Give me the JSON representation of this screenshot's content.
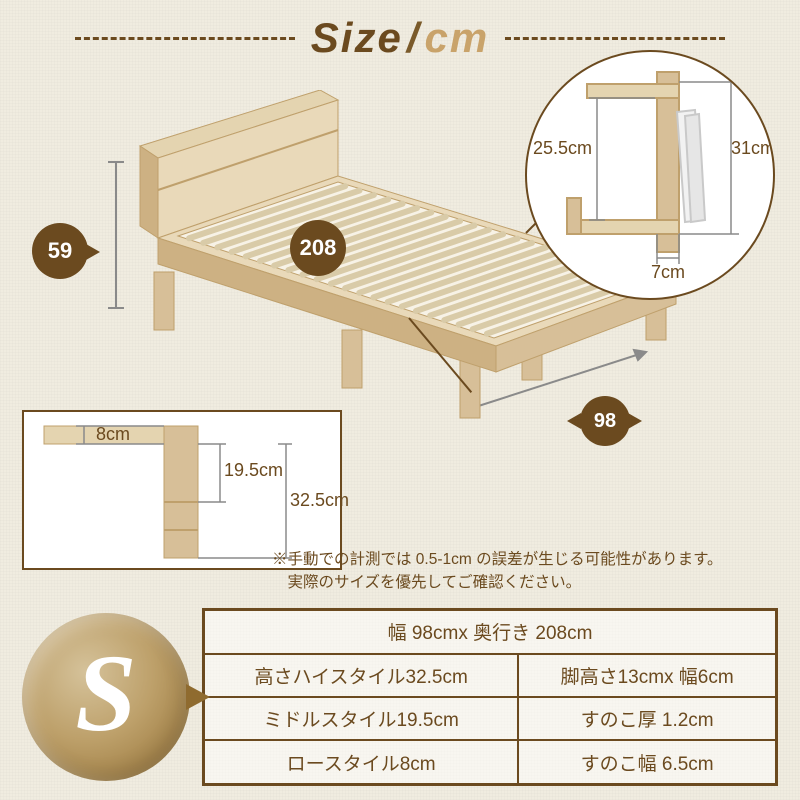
{
  "colors": {
    "brown": "#6b4a1f",
    "tan": "#c9a36a",
    "wood_light": "#e9d9b9",
    "wood_mid": "#d7bf98",
    "wood_dark": "#bfa06c",
    "bg": "#f0ece0",
    "white": "#ffffff"
  },
  "title": {
    "size_word": "Size",
    "slash": "/",
    "unit": "cm"
  },
  "badges": {
    "height": "59",
    "length": "208",
    "width": "98"
  },
  "detail_circle": {
    "shelf_height": "25.5cm",
    "total_height": "31cm",
    "shelf_depth": "7cm"
  },
  "leg_detail": {
    "low": "8cm",
    "mid": "19.5cm",
    "high": "32.5cm"
  },
  "disclaimer": {
    "line1": "※手動での計測では 0.5-1cm の誤差が生じる可能性があります。",
    "line2": "　実際のサイズを優先してご確認ください。"
  },
  "size_letter": "S",
  "spec_table": {
    "rows": [
      [
        "幅 98cmx 奥行き 208cm"
      ],
      [
        "高さハイスタイル32.5cm",
        "脚高さ13cmx  幅6cm"
      ],
      [
        "ミドルスタイル19.5cm",
        "すのこ厚 1.2cm"
      ],
      [
        "ロースタイル8cm",
        "すのこ幅 6.5cm"
      ]
    ]
  },
  "bed_svg": {
    "slat_count": 22
  }
}
